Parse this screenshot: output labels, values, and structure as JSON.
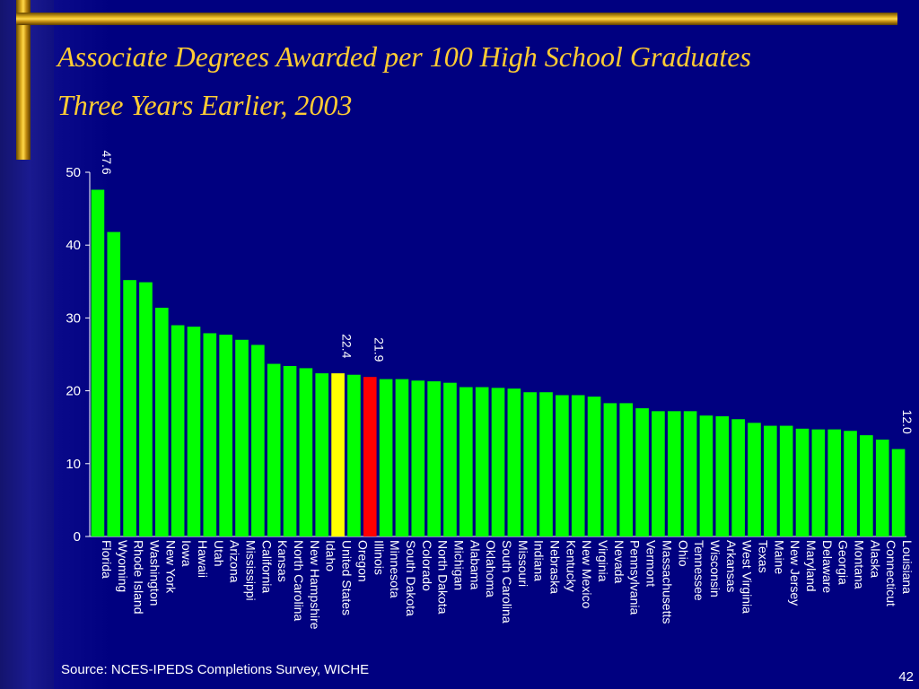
{
  "title_line1": "Associate Degrees Awarded per 100 High School Graduates",
  "title_line2": "Three Years Earlier, 2003",
  "source": "Source:  NCES-IPEDS Completions Survey, WICHE",
  "page_number": "42",
  "colors": {
    "background": "#000080",
    "title": "#ffcc33",
    "bar_default": "#00ff00",
    "bar_us": "#ffff00",
    "bar_illinois": "#ff0000",
    "text": "#ffffff"
  },
  "chart_data": {
    "type": "bar",
    "title": "Associate Degrees Awarded per 100 High School Graduates Three Years Earlier, 2003",
    "xlabel": "",
    "ylabel": "",
    "ylim": [
      0,
      50
    ],
    "yticks": [
      0,
      10,
      20,
      30,
      40,
      50
    ],
    "grid": false,
    "categories": [
      "Florida",
      "Wyoming",
      "Rhode Island",
      "Washington",
      "New York",
      "Iowa",
      "Hawaii",
      "Utah",
      "Arizona",
      "Mississippi",
      "California",
      "Kansas",
      "North Carolina",
      "New Hampshire",
      "Idaho",
      "United States",
      "Oregon",
      "Illinois",
      "Minnesota",
      "South Dakota",
      "Colorado",
      "North Dakota",
      "Michigan",
      "Alabama",
      "Oklahoma",
      "South Carolina",
      "Missouri",
      "Indiana",
      "Nebraska",
      "Kentucky",
      "New Mexico",
      "Virginia",
      "Nevada",
      "Pennsylvania",
      "Vermont",
      "Massachusetts",
      "Ohio",
      "Tennessee",
      "Wisconsin",
      "Arkansas",
      "West Virginia",
      "Texas",
      "Maine",
      "New Jersey",
      "Maryland",
      "Delaware",
      "Georgia",
      "Montana",
      "Alaska",
      "Connecticut",
      "Louisiana"
    ],
    "values": [
      47.6,
      41.8,
      35.2,
      34.9,
      31.4,
      29.0,
      28.8,
      27.9,
      27.7,
      27.0,
      26.3,
      23.7,
      23.4,
      23.1,
      22.4,
      22.4,
      22.2,
      21.9,
      21.6,
      21.6,
      21.4,
      21.3,
      21.1,
      20.5,
      20.5,
      20.4,
      20.3,
      19.8,
      19.8,
      19.4,
      19.4,
      19.2,
      18.3,
      18.3,
      17.6,
      17.2,
      17.2,
      17.2,
      16.6,
      16.5,
      16.1,
      15.6,
      15.2,
      15.2,
      14.8,
      14.7,
      14.7,
      14.5,
      13.9,
      13.3,
      12.0
    ],
    "highlight": {
      "United States": "#ffff00",
      "Illinois": "#ff0000"
    },
    "data_labels": [
      {
        "category": "Florida",
        "text": "47.6"
      },
      {
        "category": "United States",
        "text": "22.4"
      },
      {
        "category": "Illinois",
        "text": "21.9"
      },
      {
        "category": "Louisiana",
        "text": "12.0"
      }
    ]
  }
}
